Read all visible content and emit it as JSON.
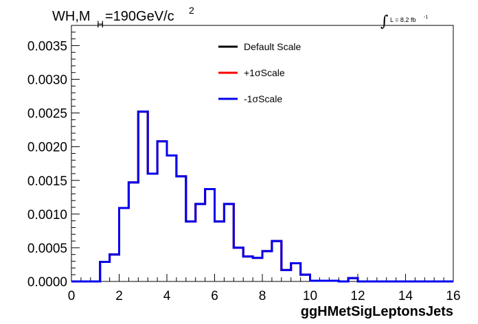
{
  "header": {
    "title_main": "WH,M",
    "title_sub": "H",
    "title_value": "=190GeV/c",
    "title_sup": "2",
    "lumi_integral": "∫",
    "lumi_text": "L = 8.2 fb",
    "lumi_sup": "-1"
  },
  "chart_data": {
    "type": "line",
    "title": "WH,MH=190GeV/c 2",
    "xlabel": "ggHMetSigLeptonsJets",
    "ylabel": "",
    "xlim": [
      0,
      16
    ],
    "ylim": [
      0,
      0.0038
    ],
    "x_ticks": [
      "0",
      "2",
      "4",
      "6",
      "8",
      "10",
      "12",
      "14",
      "16"
    ],
    "y_ticks": [
      "0.0000",
      "0.0005",
      "0.0010",
      "0.0015",
      "0.0020",
      "0.0025",
      "0.0030",
      "0.0035"
    ],
    "bin_width": 0.4,
    "bin_edges_start": 0,
    "series": [
      {
        "name": "Default Scale",
        "color": "#000000",
        "values": [
          0,
          0,
          0,
          0.00029,
          0.0004,
          0.00109,
          0.00147,
          0.00252,
          0.0016,
          0.00208,
          0.00187,
          0.00156,
          0.00089,
          0.00115,
          0.00137,
          0.00089,
          0.00115,
          0.0005,
          0.00037,
          0.00035,
          0.00045,
          0.0006,
          0.00017,
          0.00027,
          0.0001,
          1e-05,
          1e-05,
          1e-05,
          0,
          5e-05,
          0,
          0,
          0,
          0,
          0,
          0,
          0,
          0,
          0,
          0
        ]
      },
      {
        "name": "+1σScale",
        "color": "#ff0000",
        "values": [
          0,
          0,
          0,
          0.00029,
          0.0004,
          0.00109,
          0.00147,
          0.00252,
          0.0016,
          0.00208,
          0.00187,
          0.00156,
          0.00089,
          0.00115,
          0.00137,
          0.00089,
          0.00115,
          0.0005,
          0.00037,
          0.00035,
          0.00045,
          0.0006,
          0.00017,
          0.00027,
          0.0001,
          1e-05,
          1e-05,
          1e-05,
          0,
          5e-05,
          0,
          0,
          0,
          0,
          0,
          0,
          0,
          0,
          0,
          0
        ]
      },
      {
        "name": "-1σScale",
        "color": "#0000ee",
        "values": [
          0,
          0,
          0,
          0.00029,
          0.0004,
          0.00109,
          0.00147,
          0.00252,
          0.0016,
          0.00208,
          0.00187,
          0.00156,
          0.00089,
          0.00115,
          0.00137,
          0.00089,
          0.00115,
          0.0005,
          0.00037,
          0.00035,
          0.00045,
          0.0006,
          0.00017,
          0.00027,
          0.0001,
          1e-05,
          1e-05,
          1e-05,
          0,
          5e-05,
          0,
          0,
          0,
          0,
          0,
          0,
          0,
          0,
          0,
          0
        ]
      }
    ],
    "legend_position": "top-center"
  }
}
